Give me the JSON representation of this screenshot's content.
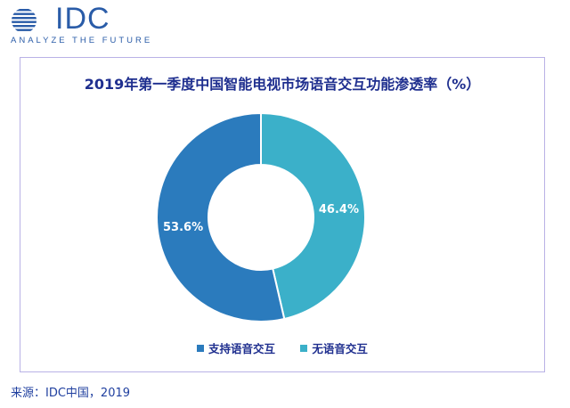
{
  "logo": {
    "brand": "IDC",
    "tagline": "ANALYZE THE FUTURE"
  },
  "source": "来源：IDC中国，2019",
  "colors": {
    "slice1": "#2b7bbd",
    "slice2": "#3bb0c9",
    "title": "#1f2f8f",
    "label": "#ffffff"
  },
  "chart_data": {
    "type": "pie",
    "style": "donut",
    "title": "2019年第一季度中国智能电视市场语音交互功能渗透率（%）",
    "categories": [
      "支持语音交互",
      "无语音交互"
    ],
    "values": [
      53.6,
      46.4
    ],
    "labels": [
      "53.6%",
      "46.4%"
    ],
    "legend_position": "bottom"
  }
}
